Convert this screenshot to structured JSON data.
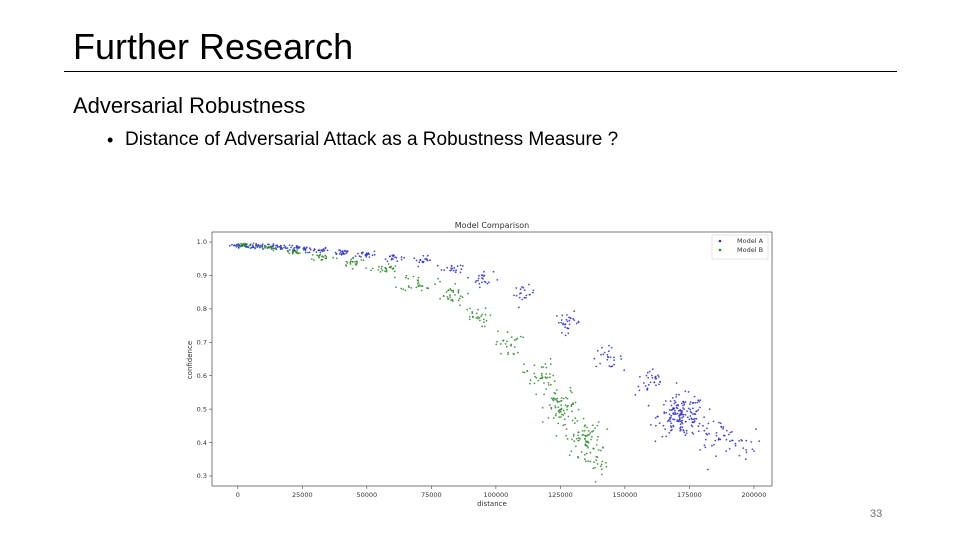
{
  "slide": {
    "title": "Further Research",
    "heading": "Adversarial Robustness",
    "bullet": "Distance of Adversarial Attack as a Robustness Measure ?",
    "page_number": "33"
  },
  "chart_data": {
    "type": "scatter",
    "title": "Model Comparison",
    "xlabel": "distance",
    "ylabel": "confidence",
    "xlim": [
      -10000,
      207000
    ],
    "ylim": [
      0.27,
      1.03
    ],
    "xticks": [
      0,
      25000,
      50000,
      75000,
      100000,
      125000,
      150000,
      175000,
      200000
    ],
    "yticks": [
      1.0,
      0.9,
      0.8,
      0.7,
      0.6,
      0.5,
      0.4,
      0.3
    ],
    "legend_position": "top-right",
    "series": [
      {
        "name": "Model A",
        "color": "#2b2bd6",
        "clusters": [
          {
            "x": 1000,
            "y": 0.99,
            "sx": 2000,
            "sy": 0.003,
            "n": 25
          },
          {
            "x": 8000,
            "y": 0.987,
            "sx": 2500,
            "sy": 0.004,
            "n": 30
          },
          {
            "x": 15000,
            "y": 0.984,
            "sx": 2000,
            "sy": 0.004,
            "n": 25
          },
          {
            "x": 23000,
            "y": 0.98,
            "sx": 2500,
            "sy": 0.005,
            "n": 25
          },
          {
            "x": 31000,
            "y": 0.976,
            "sx": 2000,
            "sy": 0.005,
            "n": 22
          },
          {
            "x": 40000,
            "y": 0.97,
            "sx": 2000,
            "sy": 0.005,
            "n": 22
          },
          {
            "x": 50000,
            "y": 0.963,
            "sx": 2000,
            "sy": 0.006,
            "n": 20
          },
          {
            "x": 60000,
            "y": 0.955,
            "sx": 2000,
            "sy": 0.006,
            "n": 18
          },
          {
            "x": 72000,
            "y": 0.943,
            "sx": 2000,
            "sy": 0.007,
            "n": 18
          },
          {
            "x": 83000,
            "y": 0.922,
            "sx": 2000,
            "sy": 0.008,
            "n": 18
          },
          {
            "x": 95000,
            "y": 0.89,
            "sx": 2000,
            "sy": 0.012,
            "n": 22
          },
          {
            "x": 111000,
            "y": 0.845,
            "sx": 2000,
            "sy": 0.012,
            "n": 20
          },
          {
            "x": 128000,
            "y": 0.76,
            "sx": 2500,
            "sy": 0.015,
            "n": 30
          },
          {
            "x": 143000,
            "y": 0.655,
            "sx": 3000,
            "sy": 0.015,
            "n": 25
          },
          {
            "x": 160000,
            "y": 0.58,
            "sx": 3000,
            "sy": 0.02,
            "n": 30
          },
          {
            "x": 172000,
            "y": 0.48,
            "sx": 4500,
            "sy": 0.03,
            "n": 160
          },
          {
            "x": 185000,
            "y": 0.42,
            "sx": 5000,
            "sy": 0.025,
            "n": 45
          },
          {
            "x": 195000,
            "y": 0.395,
            "sx": 3000,
            "sy": 0.02,
            "n": 15
          }
        ]
      },
      {
        "name": "Model B",
        "color": "#2a8a2a",
        "clusters": [
          {
            "x": 2000,
            "y": 0.99,
            "sx": 2000,
            "sy": 0.003,
            "n": 18
          },
          {
            "x": 12000,
            "y": 0.982,
            "sx": 2500,
            "sy": 0.004,
            "n": 22
          },
          {
            "x": 22000,
            "y": 0.97,
            "sx": 2500,
            "sy": 0.005,
            "n": 22
          },
          {
            "x": 33000,
            "y": 0.955,
            "sx": 2500,
            "sy": 0.006,
            "n": 22
          },
          {
            "x": 45000,
            "y": 0.94,
            "sx": 2500,
            "sy": 0.007,
            "n": 22
          },
          {
            "x": 57000,
            "y": 0.92,
            "sx": 2500,
            "sy": 0.008,
            "n": 25
          },
          {
            "x": 70000,
            "y": 0.88,
            "sx": 3500,
            "sy": 0.013,
            "n": 30
          },
          {
            "x": 82000,
            "y": 0.84,
            "sx": 3500,
            "sy": 0.015,
            "n": 30
          },
          {
            "x": 92000,
            "y": 0.775,
            "sx": 2500,
            "sy": 0.015,
            "n": 25
          },
          {
            "x": 105000,
            "y": 0.695,
            "sx": 2500,
            "sy": 0.02,
            "n": 25
          },
          {
            "x": 117000,
            "y": 0.6,
            "sx": 3000,
            "sy": 0.025,
            "n": 40
          },
          {
            "x": 126000,
            "y": 0.5,
            "sx": 3500,
            "sy": 0.03,
            "n": 70
          },
          {
            "x": 134000,
            "y": 0.41,
            "sx": 3500,
            "sy": 0.025,
            "n": 70
          },
          {
            "x": 140000,
            "y": 0.345,
            "sx": 3000,
            "sy": 0.02,
            "n": 20
          }
        ]
      }
    ]
  }
}
